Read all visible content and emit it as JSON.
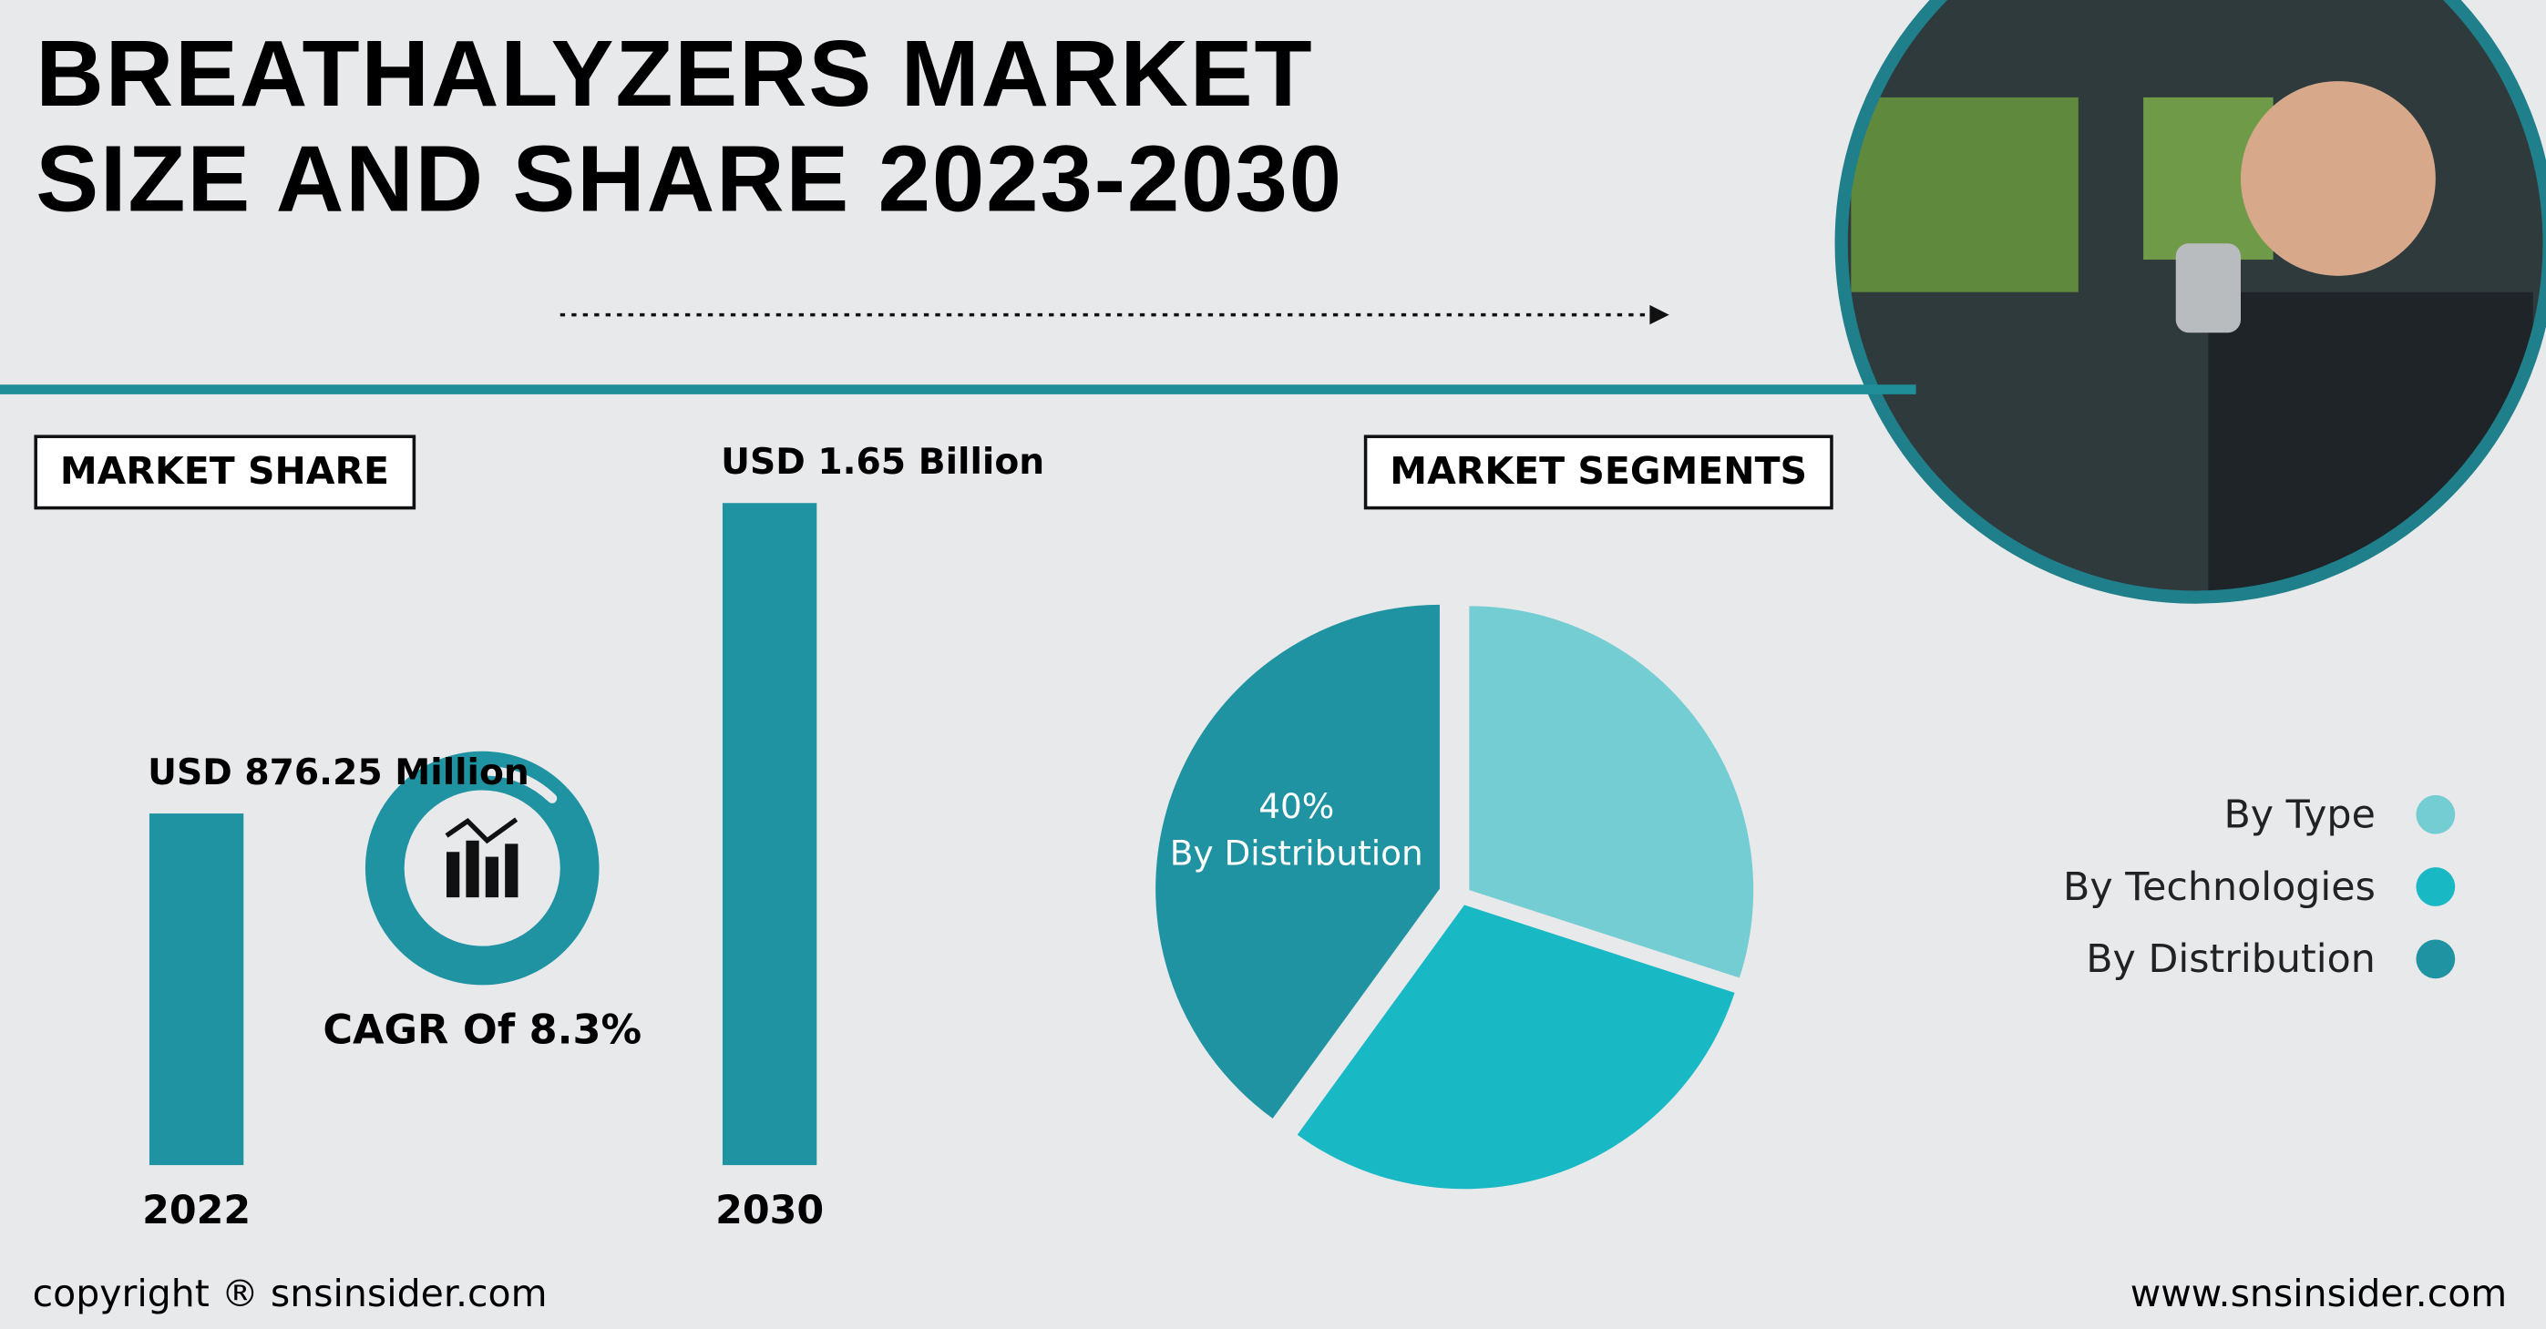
{
  "header": {
    "title": "BREATHALYZERS MARKET SIZE AND SHARE 2023-2030"
  },
  "chart_data": [
    {
      "type": "bar",
      "title": "MARKET SHARE",
      "categories": [
        "2022",
        "2030"
      ],
      "values": [
        876.25,
        1650
      ],
      "value_labels": [
        "USD 876.25 Million",
        "USD 1.65 Billion"
      ],
      "color": "#1f93a1",
      "annotation": "CAGR Of 8.3%"
    },
    {
      "type": "pie",
      "title": "MARKET SEGMENTS",
      "categories": [
        "By Type",
        "By Technologies",
        "By Distribution"
      ],
      "values": [
        30,
        30,
        40
      ],
      "value_labels": [
        null,
        null,
        "40%"
      ],
      "colors": [
        "#74cdd3",
        "#18b9c4",
        "#1f93a1"
      ],
      "legend": "right"
    }
  ],
  "footer": {
    "copyright": "copyright ® snsinsider.com",
    "website": "www.snsinsider.com"
  }
}
